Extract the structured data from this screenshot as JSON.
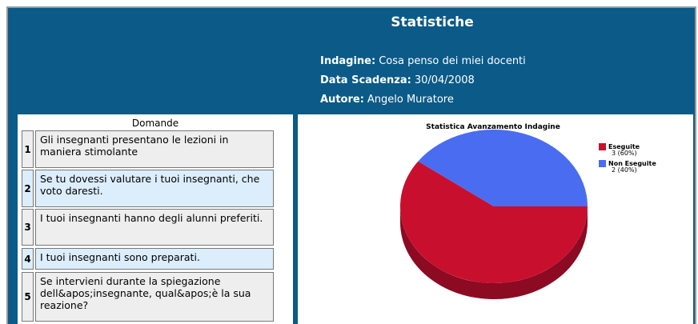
{
  "header": {
    "title": "Statistiche",
    "info": [
      {
        "label": "Indagine:",
        "value": "Cosa penso dei miei docenti"
      },
      {
        "label": "Data Scadenza:",
        "value": "30/04/2008"
      },
      {
        "label": "Autore:",
        "value": "Angelo Muratore"
      }
    ]
  },
  "questions": {
    "title": "Domande",
    "rows": [
      {
        "number": "1",
        "text": "Gli insegnanti presentano le lezioni in maniera stimolante"
      },
      {
        "number": "2",
        "text": "Se tu dovessi valutare i tuoi insegnanti, che voto daresti."
      },
      {
        "number": "3",
        "text": "I tuoi insegnanti hanno degli alunni preferiti."
      },
      {
        "number": "4",
        "text": "I tuoi insegnanti sono preparati."
      },
      {
        "number": "5",
        "text": "Se intervieni durante la spiegazione dell&apos;insegnante, qual&apos;è la sua reazione?"
      }
    ]
  },
  "chart_data": {
    "type": "pie",
    "title": "Statistica Avanzamento Indagine",
    "categories": [
      "Eseguite",
      "Non Eseguite"
    ],
    "values": [
      3,
      2
    ],
    "value_labels": [
      "3 (60%)",
      "2 (40%)"
    ],
    "colors": [
      "#c8102e",
      "#4a6cf0"
    ],
    "legend": "right"
  }
}
